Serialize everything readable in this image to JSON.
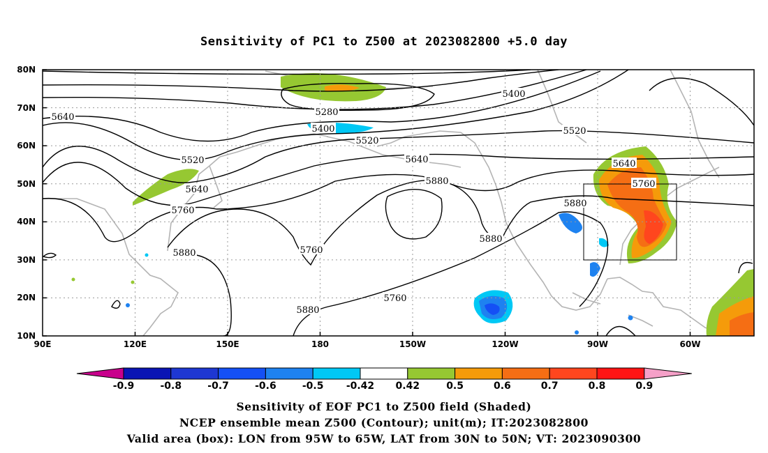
{
  "title": "Sensitivity of PC1 to Z500 at 2023082800 +5.0 day",
  "lat_ticks": [
    "80N",
    "70N",
    "60N",
    "50N",
    "40N",
    "30N",
    "20N",
    "10N"
  ],
  "lon_ticks": [
    "90E",
    "120E",
    "150E",
    "180",
    "150W",
    "120W",
    "90W",
    "60W"
  ],
  "contour_labels": [
    "5640",
    "5520",
    "5640",
    "5760",
    "5880",
    "5280",
    "5400",
    "5520",
    "5640",
    "5880",
    "5760",
    "5880",
    "5760",
    "5880",
    "5400",
    "5520",
    "5640",
    "5760",
    "5880"
  ],
  "colorbar": {
    "labels": [
      "-0.9",
      "-0.8",
      "-0.7",
      "-0.6",
      "-0.5",
      "-0.42",
      "0.42",
      "0.5",
      "0.6",
      "0.7",
      "0.8",
      "0.9"
    ],
    "colors": [
      "#c8008c",
      "#0a14b4",
      "#1e37d2",
      "#1450f5",
      "#1e82f0",
      "#00c8f5",
      "#ffffff",
      "#96c832",
      "#f59b0a",
      "#f56e14",
      "#ff461e",
      "#ff1414",
      "#f5a0c8"
    ]
  },
  "caption": {
    "line1": "Sensitivity of EOF PC1 to Z500 field (Shaded)",
    "line2": "NCEP ensemble mean Z500 (Contour); unit(m); IT:2023082800",
    "line3": "Valid area (box): LON from 95W to 65W, LAT from 30N to 50N; VT: 2023090300"
  }
}
